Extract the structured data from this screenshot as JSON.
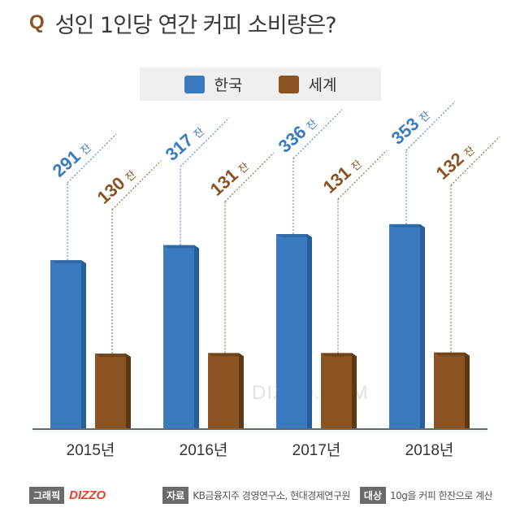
{
  "title": {
    "q_mark": "Q",
    "text": "성인 1인당 연간 커피 소비량은?"
  },
  "legend": [
    {
      "label": "한국",
      "color": "#3a7bbf"
    },
    {
      "label": "세계",
      "color": "#8a5321"
    }
  ],
  "watermark": "DIZZO.COM",
  "footer": {
    "graphic_tag": "그래픽",
    "brand": "DIZZO",
    "source_tag": "자료",
    "source_text": "KB금융지주 경영연구소, 현대경제연구원",
    "target_tag": "대상",
    "target_text": "10g을 커피 한잔으로 계산"
  },
  "chart_data": {
    "type": "bar",
    "categories": [
      "2015년",
      "2016년",
      "2017년",
      "2018년"
    ],
    "unit": "잔",
    "series": [
      {
        "name": "한국",
        "values": [
          291,
          317,
          336,
          353
        ],
        "color": "#3a7bbf"
      },
      {
        "name": "세계",
        "values": [
          130,
          131,
          131,
          132
        ],
        "color": "#8a5321"
      }
    ],
    "xlabel": "",
    "ylabel": "",
    "ylim": [
      0,
      380
    ],
    "grid": false,
    "legend": "top"
  }
}
